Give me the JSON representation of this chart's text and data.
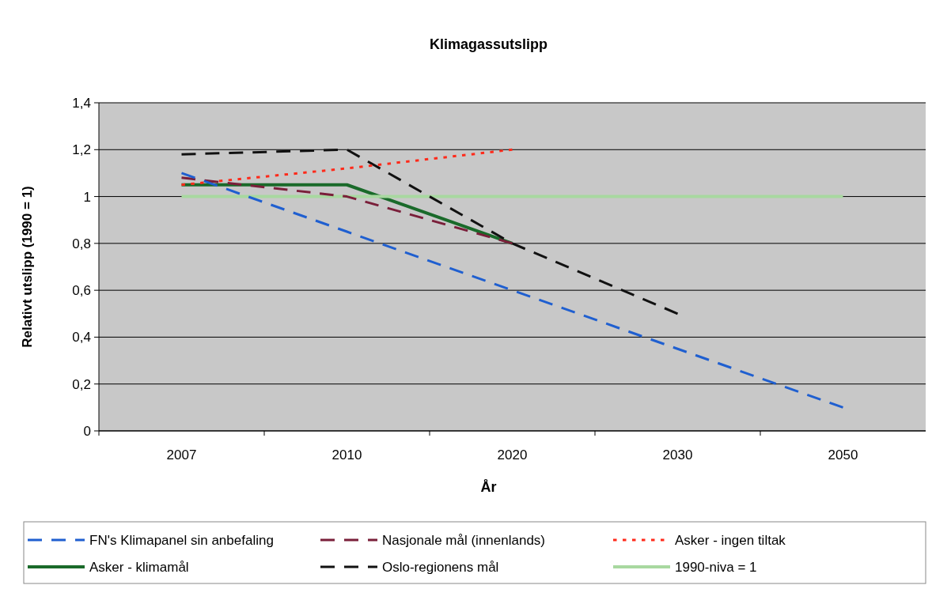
{
  "chart_data": {
    "type": "line",
    "title": "Klimagassutslipp",
    "xlabel": "År",
    "ylabel": "Relativt utslipp (1990 = 1)",
    "categories": [
      "2007",
      "2010",
      "2020",
      "2030",
      "2050"
    ],
    "ylim": [
      0,
      1.4
    ],
    "yticks": [
      0,
      {
        "value": 0.2,
        "label": "0,2"
      },
      {
        "value": 0.4,
        "label": "0,4"
      },
      {
        "value": 0.6,
        "label": "0,6"
      },
      {
        "value": 0.8,
        "label": "0,8"
      },
      1,
      {
        "value": 1.2,
        "label": "1,2"
      },
      {
        "value": 1.4,
        "label": "1,4"
      }
    ],
    "grid": "y",
    "legend": "bottom",
    "marker": "none",
    "series": [
      {
        "name": "FN's Klimapanel sin anbefaling",
        "color": "#1f5fd0",
        "line_style": "dashed",
        "values": [
          1.1,
          0.85,
          0.6,
          0.35,
          0.1
        ]
      },
      {
        "name": "Nasjonale mål (innenlands)",
        "color": "#7a1f3a",
        "line_style": "dashed",
        "values": [
          1.08,
          1.0,
          0.8,
          null,
          null
        ]
      },
      {
        "name": "Asker - ingen tiltak",
        "color": "#ff2a1a",
        "line_style": "dotted",
        "values": [
          1.05,
          1.12,
          1.2,
          null,
          null
        ]
      },
      {
        "name": "Asker - klimamål",
        "color": "#1a6a2a",
        "line_style": "solid",
        "values": [
          1.05,
          1.05,
          0.8,
          null,
          null
        ]
      },
      {
        "name": "Oslo-regionens mål",
        "color": "#111111",
        "line_style": "dashed",
        "values": [
          1.18,
          1.2,
          0.8,
          0.5,
          null
        ]
      },
      {
        "name": "1990-niva = 1",
        "color": "#a8d8a0",
        "line_style": "solid",
        "values": [
          1,
          1,
          1,
          1,
          1
        ]
      }
    ]
  }
}
